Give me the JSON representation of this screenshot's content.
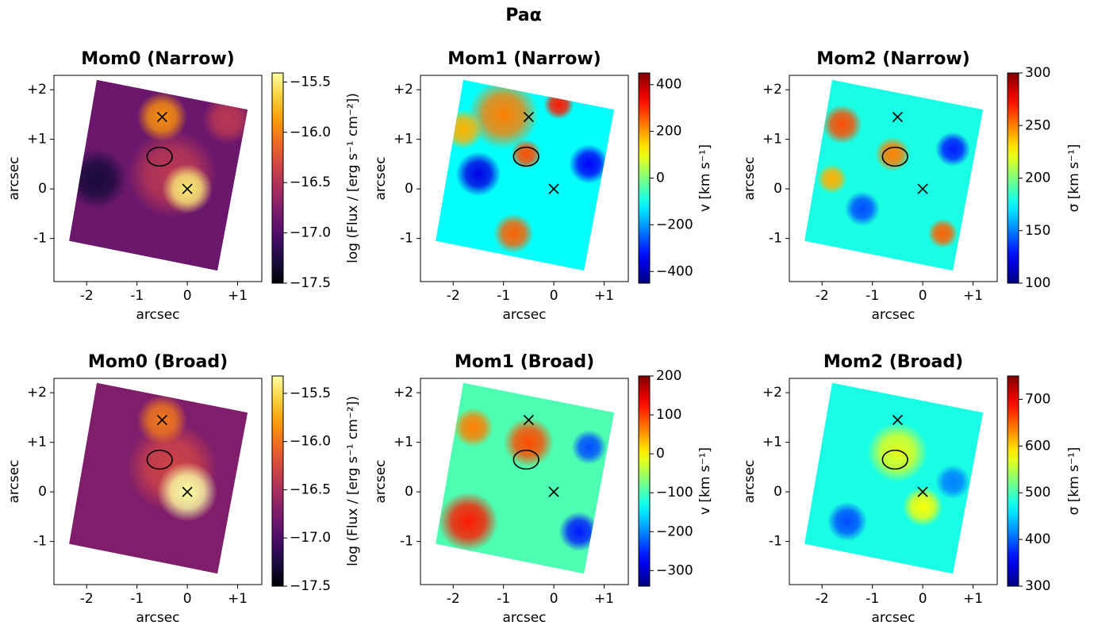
{
  "title": "Paα",
  "chart_data": [
    {
      "type": "heatmap",
      "title": "Mom0 (Narrow)",
      "xlabel": "arcsec",
      "ylabel": "arcsec",
      "colormap": "inferno",
      "xlim": [
        -2.65,
        1.48
      ],
      "ylim": [
        -1.87,
        2.29
      ],
      "xticks": [
        -2,
        -1,
        0,
        {
          "value": 1,
          "label": "+1"
        }
      ],
      "yticks": [
        -1,
        0,
        {
          "value": 1,
          "label": "+1"
        },
        {
          "value": 2,
          "label": "+2"
        }
      ],
      "colorbar": {
        "label": "log (Flux / [erg s⁻¹ cm⁻²])",
        "lim": [
          -17.5,
          -15.41
        ],
        "ticks": [
          {
            "value": -17.5,
            "label": "−17.5"
          },
          {
            "value": -17,
            "label": "−17.0"
          },
          {
            "value": -16.5,
            "label": "−16.5"
          },
          {
            "value": -16,
            "label": "−16.0"
          },
          {
            "value": -15.5,
            "label": "−15.5"
          }
        ]
      },
      "markers": {
        "x": [
          -0.5,
          0
        ],
        "y": [
          1.45,
          0
        ]
      },
      "ellipse": {
        "x": -0.55,
        "y": 0.65,
        "width": 0.5,
        "height": 0.38
      }
    },
    {
      "type": "heatmap",
      "title": "Mom1 (Narrow)",
      "xlabel": "arcsec",
      "ylabel": "arcsec",
      "colormap": "jet",
      "xlim": [
        -2.65,
        1.48
      ],
      "ylim": [
        -1.87,
        2.29
      ],
      "xticks": [
        -2,
        -1,
        0,
        {
          "value": 1,
          "label": "+1"
        }
      ],
      "yticks": [
        -1,
        0,
        {
          "value": 1,
          "label": "+1"
        },
        {
          "value": 2,
          "label": "+2"
        }
      ],
      "colorbar": {
        "label": "v [km s⁻¹]",
        "lim": [
          -450,
          450
        ],
        "ticks": [
          {
            "value": -400,
            "label": "−400"
          },
          {
            "value": -200,
            "label": "−200"
          },
          0,
          200,
          400
        ]
      },
      "markers": {
        "x": [
          -0.5,
          0
        ],
        "y": [
          1.45,
          0
        ]
      },
      "ellipse": {
        "x": -0.55,
        "y": 0.65,
        "width": 0.5,
        "height": 0.38
      }
    },
    {
      "type": "heatmap",
      "title": "Mom2 (Narrow)",
      "xlabel": "arcsec",
      "ylabel": "arcsec",
      "colormap": "jet",
      "xlim": [
        -2.65,
        1.48
      ],
      "ylim": [
        -1.87,
        2.29
      ],
      "xticks": [
        -2,
        -1,
        0,
        {
          "value": 1,
          "label": "+1"
        }
      ],
      "yticks": [
        -1,
        0,
        {
          "value": 1,
          "label": "+1"
        },
        {
          "value": 2,
          "label": "+2"
        }
      ],
      "colorbar": {
        "label": "σ [km s⁻¹]",
        "lim": [
          100,
          300
        ],
        "ticks": [
          100,
          150,
          200,
          250,
          300
        ]
      },
      "markers": {
        "x": [
          -0.5,
          0
        ],
        "y": [
          1.45,
          0
        ]
      },
      "ellipse": {
        "x": -0.55,
        "y": 0.65,
        "width": 0.5,
        "height": 0.38
      }
    },
    {
      "type": "heatmap",
      "title": "Mom0 (Broad)",
      "xlabel": "arcsec",
      "ylabel": "arcsec",
      "colormap": "inferno",
      "xlim": [
        -2.65,
        1.48
      ],
      "ylim": [
        -1.87,
        2.29
      ],
      "xticks": [
        -2,
        -1,
        0,
        {
          "value": 1,
          "label": "+1"
        }
      ],
      "yticks": [
        -1,
        0,
        {
          "value": 1,
          "label": "+1"
        },
        {
          "value": 2,
          "label": "+2"
        }
      ],
      "colorbar": {
        "label": "log (Flux / [erg s⁻¹ cm⁻²])",
        "lim": [
          -17.5,
          -15.32
        ],
        "ticks": [
          {
            "value": -17.5,
            "label": "−17.5"
          },
          {
            "value": -17,
            "label": "−17.0"
          },
          {
            "value": -16.5,
            "label": "−16.5"
          },
          {
            "value": -16,
            "label": "−16.0"
          },
          {
            "value": -15.5,
            "label": "−15.5"
          }
        ]
      },
      "markers": {
        "x": [
          -0.5,
          0
        ],
        "y": [
          1.45,
          0
        ]
      },
      "ellipse": {
        "x": -0.55,
        "y": 0.65,
        "width": 0.5,
        "height": 0.38
      }
    },
    {
      "type": "heatmap",
      "title": "Mom1 (Broad)",
      "xlabel": "arcsec",
      "ylabel": "arcsec",
      "colormap": "jet",
      "xlim": [
        -2.65,
        1.48
      ],
      "ylim": [
        -1.87,
        2.29
      ],
      "xticks": [
        -2,
        -1,
        0,
        {
          "value": 1,
          "label": "+1"
        }
      ],
      "yticks": [
        -1,
        0,
        {
          "value": 1,
          "label": "+1"
        },
        {
          "value": 2,
          "label": "+2"
        }
      ],
      "colorbar": {
        "label": "v [km s⁻¹]",
        "lim": [
          -340,
          200
        ],
        "ticks": [
          {
            "value": -300,
            "label": "−300"
          },
          {
            "value": -200,
            "label": "−200"
          },
          {
            "value": -100,
            "label": "−100"
          },
          0,
          100,
          200
        ]
      },
      "markers": {
        "x": [
          -0.5,
          0
        ],
        "y": [
          1.45,
          0
        ]
      },
      "ellipse": {
        "x": -0.55,
        "y": 0.65,
        "width": 0.5,
        "height": 0.38
      }
    },
    {
      "type": "heatmap",
      "title": "Mom2 (Broad)",
      "xlabel": "arcsec",
      "ylabel": "arcsec",
      "colormap": "jet",
      "xlim": [
        -2.65,
        1.48
      ],
      "ylim": [
        -1.87,
        2.29
      ],
      "xticks": [
        -2,
        -1,
        0,
        {
          "value": 1,
          "label": "+1"
        }
      ],
      "yticks": [
        -1,
        0,
        {
          "value": 1,
          "label": "+1"
        },
        {
          "value": 2,
          "label": "+2"
        }
      ],
      "colorbar": {
        "label": "σ [km s⁻¹]",
        "lim": [
          300,
          750
        ],
        "ticks": [
          300,
          400,
          500,
          600,
          700
        ]
      },
      "markers": {
        "x": [
          -0.5,
          0
        ],
        "y": [
          1.45,
          0
        ]
      },
      "ellipse": {
        "x": -0.55,
        "y": 0.65,
        "width": 0.5,
        "height": 0.38
      }
    }
  ]
}
